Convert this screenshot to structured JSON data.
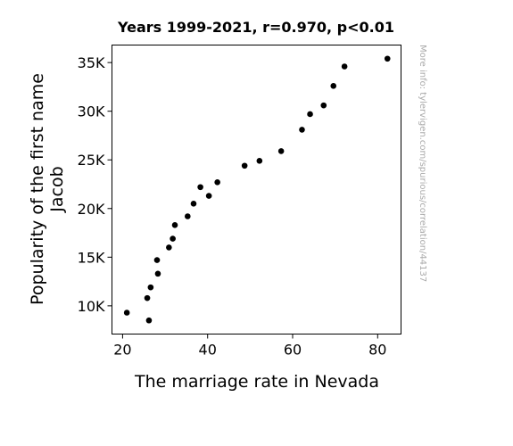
{
  "chart_data": {
    "type": "scatter",
    "title": "Years 1999-2021, r=0.970, p<0.01",
    "xlabel": "The marriage rate in Nevada",
    "ylabel_lines": [
      "Popularity of the first name",
      "Jacob"
    ],
    "xlim": [
      17.5,
      85.5
    ],
    "ylim": [
      7100,
      36800
    ],
    "x_ticks": [
      {
        "value": 20,
        "label": "20"
      },
      {
        "value": 40,
        "label": "40"
      },
      {
        "value": 60,
        "label": "60"
      },
      {
        "value": 80,
        "label": "80"
      }
    ],
    "y_ticks": [
      {
        "value": 10000,
        "label": "10K"
      },
      {
        "value": 15000,
        "label": "15K"
      },
      {
        "value": 20000,
        "label": "20K"
      },
      {
        "value": 25000,
        "label": "25K"
      },
      {
        "value": 30000,
        "label": "30K"
      },
      {
        "value": 35000,
        "label": "35K"
      }
    ],
    "grid": false,
    "marker_color": "#000000",
    "points": [
      {
        "x": 82.3,
        "y": 35400
      },
      {
        "x": 72.2,
        "y": 34600
      },
      {
        "x": 69.6,
        "y": 32600
      },
      {
        "x": 67.3,
        "y": 30600
      },
      {
        "x": 64.1,
        "y": 29700
      },
      {
        "x": 62.2,
        "y": 28100
      },
      {
        "x": 57.3,
        "y": 25900
      },
      {
        "x": 52.2,
        "y": 24900
      },
      {
        "x": 48.7,
        "y": 24400
      },
      {
        "x": 42.3,
        "y": 22700
      },
      {
        "x": 38.3,
        "y": 22200
      },
      {
        "x": 40.3,
        "y": 21300
      },
      {
        "x": 36.7,
        "y": 20500
      },
      {
        "x": 35.3,
        "y": 19200
      },
      {
        "x": 32.3,
        "y": 18300
      },
      {
        "x": 31.8,
        "y": 16900
      },
      {
        "x": 30.9,
        "y": 16000
      },
      {
        "x": 28.1,
        "y": 14700
      },
      {
        "x": 28.3,
        "y": 13300
      },
      {
        "x": 26.6,
        "y": 11900
      },
      {
        "x": 25.8,
        "y": 10800
      },
      {
        "x": 21.0,
        "y": 9300
      },
      {
        "x": 26.2,
        "y": 8500
      }
    ]
  },
  "watermark": "More info: tylervigen.com/spurious/correlation/44137"
}
